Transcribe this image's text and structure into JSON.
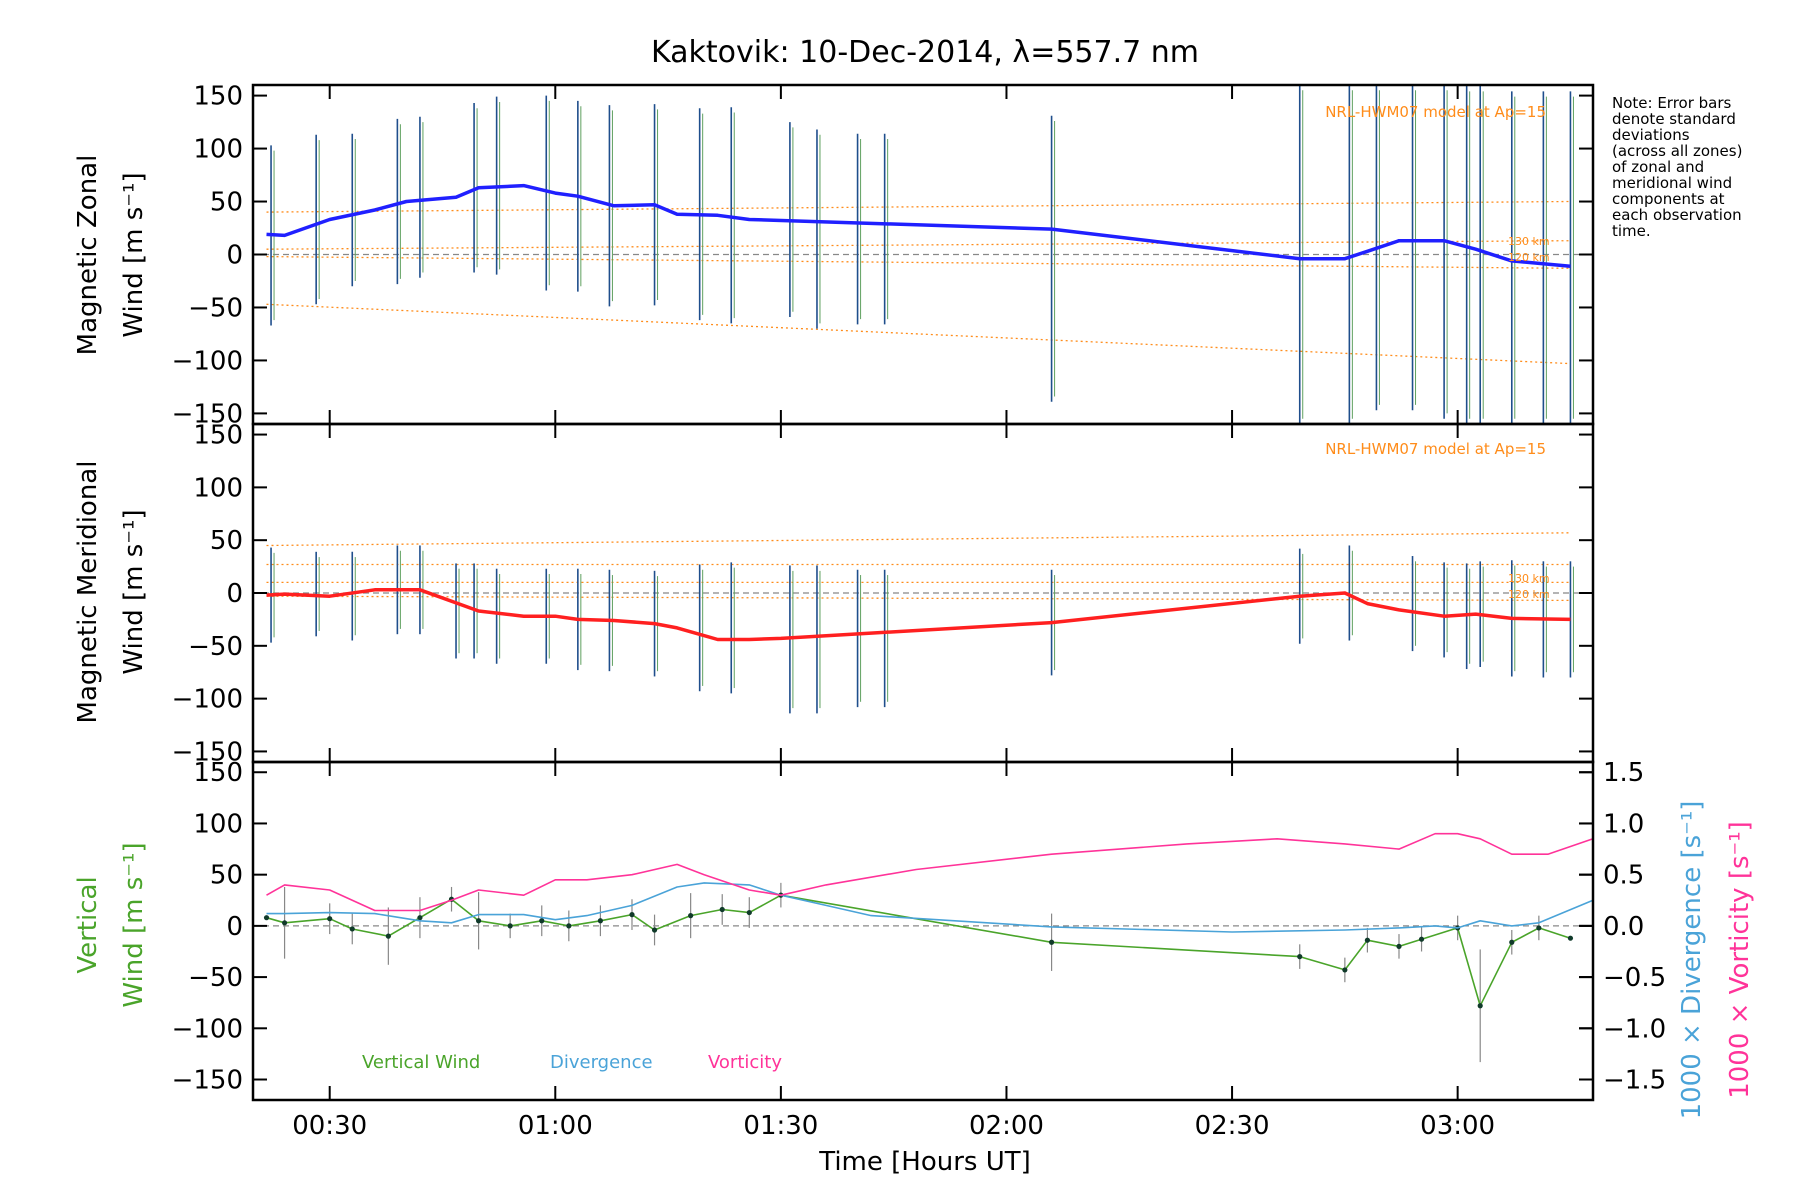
{
  "chart_data": [
    {
      "type": "line",
      "panel": "zonal",
      "title": "Kaktovik: 10-Dec-2014, λ=557.7 nm",
      "ylabel_line1": "Magnetic Zonal",
      "ylabel_line2": "Wind [m s⁻¹]",
      "ylim": [
        -160,
        160
      ],
      "yticks": [
        150,
        100,
        50,
        0,
        -50,
        -100,
        -150
      ],
      "model_label": "NRL-HWM07 model at Ap=15",
      "alt_labels": [
        "130 km",
        "120 km"
      ],
      "series": [
        {
          "name": "Zonal Wind",
          "color": "#2020ff",
          "x": [
            0.36,
            0.4,
            0.5,
            0.6,
            0.67,
            0.78,
            0.83,
            0.93,
            1.0,
            1.05,
            1.13,
            1.22,
            1.27,
            1.36,
            1.43,
            2.1,
            2.65,
            2.75,
            2.8,
            2.87,
            2.97,
            3.04,
            3.12,
            3.25
          ],
          "y": [
            19,
            18,
            33,
            42,
            50,
            54,
            63,
            65,
            58,
            55,
            46,
            47,
            38,
            37,
            33,
            24,
            -4,
            -4,
            3,
            13,
            13,
            5,
            -6,
            -11
          ]
        }
      ],
      "error_bars": {
        "x": [
          0.37,
          0.47,
          0.55,
          0.65,
          0.7,
          0.82,
          0.87,
          0.98,
          1.05,
          1.12,
          1.22,
          1.32,
          1.39,
          1.52,
          1.58,
          1.67,
          1.73,
          2.1,
          2.65,
          2.76,
          2.82,
          2.9,
          2.97,
          3.02,
          3.05,
          3.12,
          3.19,
          3.25
        ],
        "y": [
          18,
          33,
          42,
          50,
          54,
          63,
          65,
          58,
          55,
          46,
          47,
          38,
          37,
          33,
          24,
          24,
          24,
          -4,
          -4,
          3,
          13,
          13,
          5,
          -6,
          -6,
          -11,
          -11,
          -11
        ],
        "err": [
          85,
          80,
          72,
          78,
          76,
          80,
          84,
          92,
          90,
          95,
          95,
          100,
          102,
          92,
          94,
          90,
          90,
          135,
          165,
          165,
          160,
          160,
          160,
          165,
          165,
          165,
          165,
          165
        ]
      },
      "model_lines": [
        {
          "label": "HWM upper",
          "x": [
            0.36,
            3.25
          ],
          "y": [
            40,
            50
          ]
        },
        {
          "label": "130 km",
          "x": [
            0.36,
            3.25
          ],
          "y": [
            5,
            13
          ]
        },
        {
          "label": "120 km",
          "x": [
            0.36,
            3.25
          ],
          "y": [
            -2,
            -13
          ]
        },
        {
          "label": "HWM lower",
          "x": [
            0.36,
            3.25
          ],
          "y": [
            -47,
            -103
          ]
        }
      ]
    },
    {
      "type": "line",
      "panel": "meridional",
      "ylabel_line1": "Magnetic Meridional",
      "ylabel_line2": "Wind [m s⁻¹]",
      "ylim": [
        -160,
        160
      ],
      "yticks": [
        150,
        100,
        50,
        0,
        -50,
        -100,
        -150
      ],
      "model_label": "NRL-HWM07 model at Ap=15",
      "alt_labels": [
        "130 km",
        "120 km"
      ],
      "series": [
        {
          "name": "Meridional Wind",
          "color": "#ff2020",
          "x": [
            0.36,
            0.4,
            0.5,
            0.6,
            0.7,
            0.83,
            0.93,
            1.0,
            1.05,
            1.13,
            1.22,
            1.27,
            1.36,
            1.43,
            1.5,
            2.1,
            2.65,
            2.75,
            2.8,
            2.87,
            2.97,
            3.04,
            3.12,
            3.25
          ],
          "y": [
            -2,
            -1,
            -3,
            3,
            3,
            -17,
            -22,
            -22,
            -25,
            -26,
            -29,
            -33,
            -44,
            -44,
            -43,
            -28,
            -3,
            0,
            -10,
            -16,
            -22,
            -20,
            -24,
            -25
          ]
        }
      ],
      "error_bars": {
        "x": [
          0.37,
          0.47,
          0.55,
          0.65,
          0.7,
          0.78,
          0.82,
          0.87,
          0.98,
          1.05,
          1.12,
          1.22,
          1.32,
          1.39,
          1.52,
          1.58,
          1.67,
          1.73,
          2.1,
          2.65,
          2.76,
          2.9,
          2.97,
          3.02,
          3.05,
          3.12,
          3.19,
          3.25
        ],
        "y": [
          -2,
          -1,
          -3,
          3,
          3,
          -17,
          -17,
          -22,
          -22,
          -25,
          -26,
          -29,
          -33,
          -33,
          -44,
          -44,
          -43,
          -43,
          -28,
          -3,
          0,
          -10,
          -16,
          -22,
          -20,
          -24,
          -25,
          -25
        ],
        "err": [
          45,
          40,
          42,
          42,
          42,
          45,
          45,
          45,
          45,
          48,
          48,
          50,
          60,
          62,
          70,
          70,
          65,
          65,
          50,
          45,
          45,
          45,
          45,
          50,
          50,
          55,
          55,
          55
        ]
      },
      "model_lines": [
        {
          "label": "HWM upper",
          "x": [
            0.36,
            3.25
          ],
          "y": [
            45,
            57
          ]
        },
        {
          "label": "HWM mid",
          "x": [
            0.36,
            3.25
          ],
          "y": [
            27,
            27
          ]
        },
        {
          "label": "130 km",
          "x": [
            0.36,
            3.25
          ],
          "y": [
            10,
            10
          ]
        },
        {
          "label": "120 km",
          "x": [
            0.36,
            3.25
          ],
          "y": [
            -3,
            -7
          ]
        }
      ]
    },
    {
      "type": "line",
      "panel": "vertical",
      "xlabel": "Time [Hours UT]",
      "xticks": [
        "00:30",
        "01:00",
        "01:30",
        "02:00",
        "02:30",
        "03:00"
      ],
      "xtick_values": [
        0.5,
        1.0,
        1.5,
        2.0,
        2.5,
        3.0
      ],
      "xlim": [
        0.33,
        3.3
      ],
      "ylabel_line1": "Vertical",
      "ylabel_line2": "Wind [m s⁻¹]",
      "ylim": [
        -170,
        160
      ],
      "yticks": [
        150,
        100,
        50,
        0,
        -50,
        -100,
        -150
      ],
      "right_axis": {
        "ylim": [
          -1.7,
          1.6
        ],
        "yticks": [
          "1.5",
          "1.0",
          "0.5",
          "0.0",
          "−0.5",
          "−1.0",
          "−1.5"
        ],
        "ytick_values": [
          1.5,
          1.0,
          0.5,
          0.0,
          -0.5,
          -1.0,
          -1.5
        ],
        "label_divergence": "1000 × Divergence [s⁻¹]",
        "label_vorticity": "1000 × Vorticity [s⁻¹]"
      },
      "legend": [
        "Vertical Wind",
        "Divergence",
        "Vorticity"
      ],
      "series": [
        {
          "name": "Vertical Wind",
          "color": "#4aa42a",
          "x": [
            0.36,
            0.4,
            0.5,
            0.55,
            0.63,
            0.7,
            0.77,
            0.83,
            0.9,
            0.97,
            1.03,
            1.1,
            1.17,
            1.22,
            1.3,
            1.37,
            1.43,
            1.5,
            2.1,
            2.65,
            2.75,
            2.8,
            2.87,
            2.92,
            3.0,
            3.05,
            3.12,
            3.18,
            3.25
          ],
          "y": [
            8,
            3,
            7,
            -3,
            -10,
            8,
            26,
            5,
            0,
            5,
            0,
            5,
            11,
            -4,
            10,
            16,
            13,
            30,
            -16,
            -30,
            -43,
            -14,
            -20,
            -13,
            -2,
            -78,
            -16,
            -2,
            -12
          ],
          "err": [
            0,
            35,
            15,
            15,
            28,
            20,
            12,
            28,
            12,
            15,
            15,
            15,
            15,
            15,
            22,
            15,
            15,
            12,
            28,
            12,
            12,
            12,
            12,
            12,
            12,
            55,
            12,
            12,
            0
          ]
        },
        {
          "name": "Divergence",
          "color": "#4aa3d8",
          "axis": "right",
          "x": [
            0.36,
            0.4,
            0.5,
            0.6,
            0.7,
            0.77,
            0.83,
            0.93,
            1.0,
            1.07,
            1.17,
            1.27,
            1.33,
            1.43,
            1.5,
            1.6,
            1.7,
            2.1,
            2.5,
            2.75,
            2.87,
            2.95,
            3.0,
            3.05,
            3.12,
            3.18,
            3.3
          ],
          "y": [
            0.12,
            0.12,
            0.13,
            0.12,
            0.05,
            0.03,
            0.11,
            0.11,
            0.06,
            0.1,
            0.2,
            0.38,
            0.42,
            0.4,
            0.3,
            0.2,
            0.1,
            -0.01,
            -0.06,
            -0.04,
            -0.02,
            0.0,
            -0.02,
            0.05,
            0.0,
            0.03,
            0.25
          ]
        },
        {
          "name": "Vorticity",
          "color": "#ff3399",
          "axis": "right",
          "x": [
            0.36,
            0.4,
            0.5,
            0.6,
            0.7,
            0.77,
            0.83,
            0.93,
            1.0,
            1.07,
            1.17,
            1.27,
            1.33,
            1.43,
            1.5,
            1.6,
            1.8,
            2.1,
            2.4,
            2.6,
            2.75,
            2.87,
            2.95,
            3.0,
            3.05,
            3.12,
            3.2,
            3.3
          ],
          "y": [
            0.3,
            0.4,
            0.35,
            0.15,
            0.15,
            0.25,
            0.35,
            0.3,
            0.45,
            0.45,
            0.5,
            0.6,
            0.5,
            0.35,
            0.3,
            0.4,
            0.55,
            0.7,
            0.8,
            0.85,
            0.8,
            0.75,
            0.9,
            0.9,
            0.85,
            0.7,
            0.7,
            0.85
          ]
        }
      ]
    }
  ],
  "note": {
    "lines": [
      "Note: Error bars",
      "denote standard",
      "deviations",
      "(across all zones)",
      "of zonal and",
      "meridional wind",
      "components at",
      "each observation",
      "time."
    ]
  }
}
